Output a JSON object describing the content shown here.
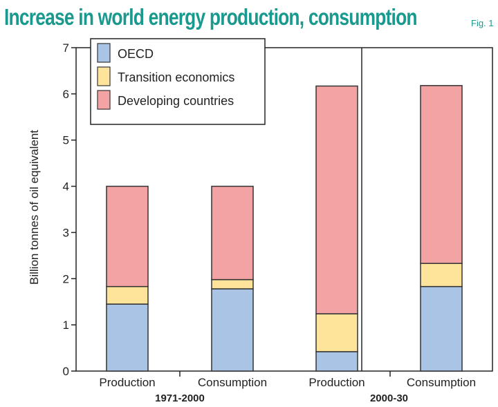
{
  "header": {
    "title": "Increase in world energy production, consumption",
    "fig_label": "Fig. 1"
  },
  "chart_data": {
    "type": "bar",
    "stacked": true,
    "ylabel": "Billion tonnes of oil equivalent",
    "ylim": [
      0,
      7
    ],
    "yticks": [
      "0",
      "1",
      "2",
      "3",
      "4",
      "5",
      "6",
      "7"
    ],
    "categories": [
      "Production",
      "Consumption",
      "Production",
      "Consumption"
    ],
    "groups": [
      {
        "label": "1971-2000",
        "categories": [
          0,
          1
        ]
      },
      {
        "label": "2000-30",
        "categories": [
          2,
          3
        ]
      }
    ],
    "series": [
      {
        "name": "OECD",
        "color": "#a9c4e4",
        "values": [
          1.45,
          1.78,
          0.42,
          1.83
        ]
      },
      {
        "name": "Transition economics",
        "color": "#fde49a",
        "values": [
          0.38,
          0.2,
          0.82,
          0.5
        ]
      },
      {
        "name": "Developing countries",
        "color": "#f3a3a3",
        "values": [
          2.17,
          2.02,
          4.93,
          3.85
        ]
      }
    ],
    "legend_position": "top-left"
  }
}
